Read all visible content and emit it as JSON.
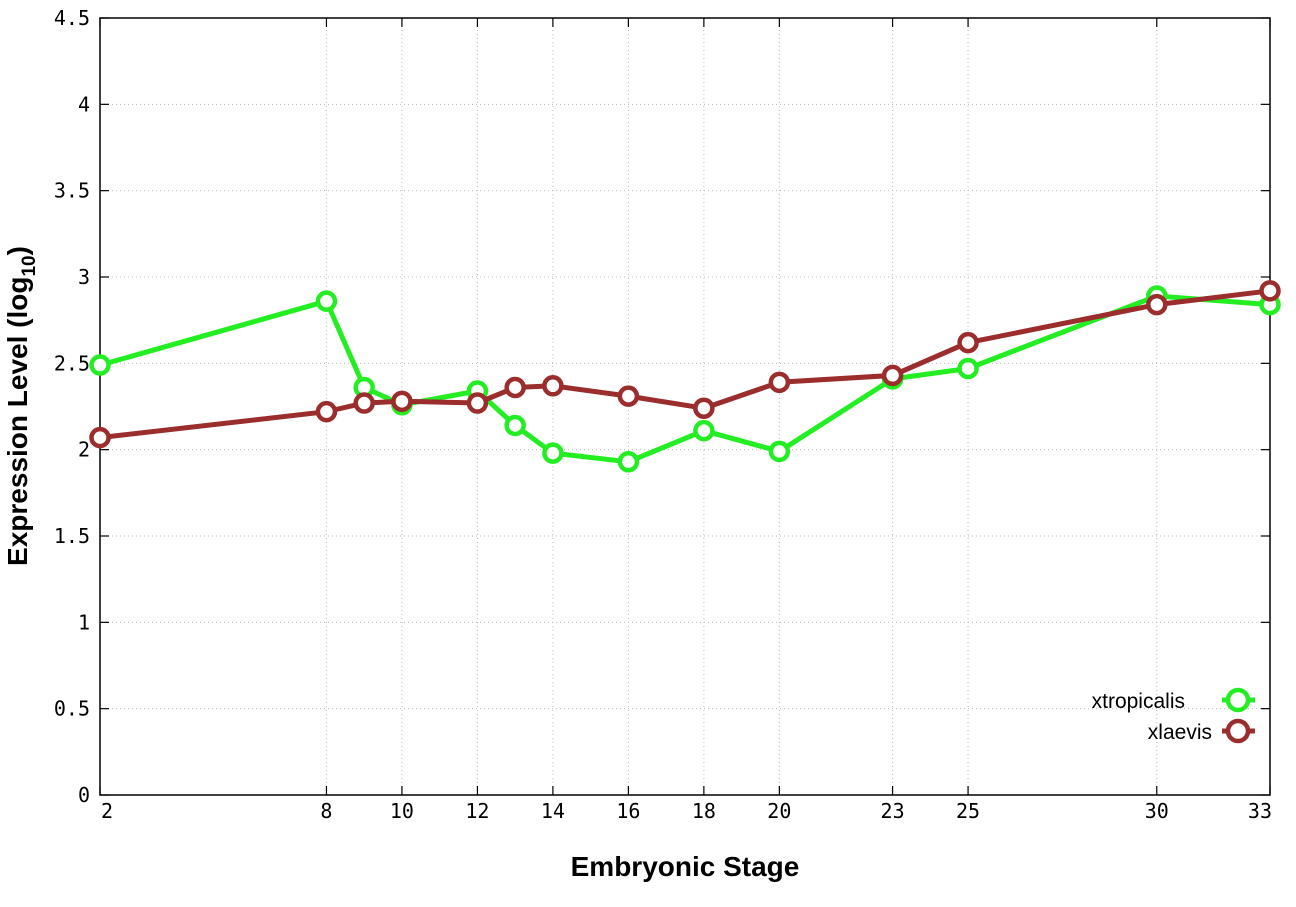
{
  "chart_data": {
    "type": "line",
    "xlabel": "Embryonic Stage",
    "ylabel": {
      "main": "Expression Level (log",
      "sub": "10",
      "close": ")"
    },
    "x_ticks": [
      2,
      8,
      10,
      12,
      14,
      16,
      18,
      20,
      23,
      25,
      30,
      33
    ],
    "y_ticks": [
      "0",
      "0.5",
      "1",
      "1.5",
      "2",
      "2.5",
      "3",
      "3.5",
      "4",
      "4.5"
    ],
    "xlim": [
      2,
      33
    ],
    "ylim": [
      0,
      4.5
    ],
    "grid": true,
    "legend_position": "bottom-right",
    "x": [
      2,
      8,
      9,
      10,
      12,
      13,
      14,
      16,
      18,
      20,
      23,
      25,
      30,
      33
    ],
    "series": [
      {
        "name": "xtropicalis",
        "color": "#22ee22",
        "values": [
          2.49,
          2.86,
          2.36,
          2.26,
          2.34,
          2.14,
          1.98,
          1.93,
          2.11,
          1.99,
          2.41,
          2.47,
          2.89,
          2.84
        ]
      },
      {
        "name": "xlaevis",
        "color": "#9b2d2d",
        "values": [
          2.07,
          2.22,
          2.27,
          2.28,
          2.27,
          2.36,
          2.37,
          2.31,
          2.24,
          2.39,
          2.43,
          2.62,
          2.84,
          2.92
        ]
      }
    ]
  }
}
